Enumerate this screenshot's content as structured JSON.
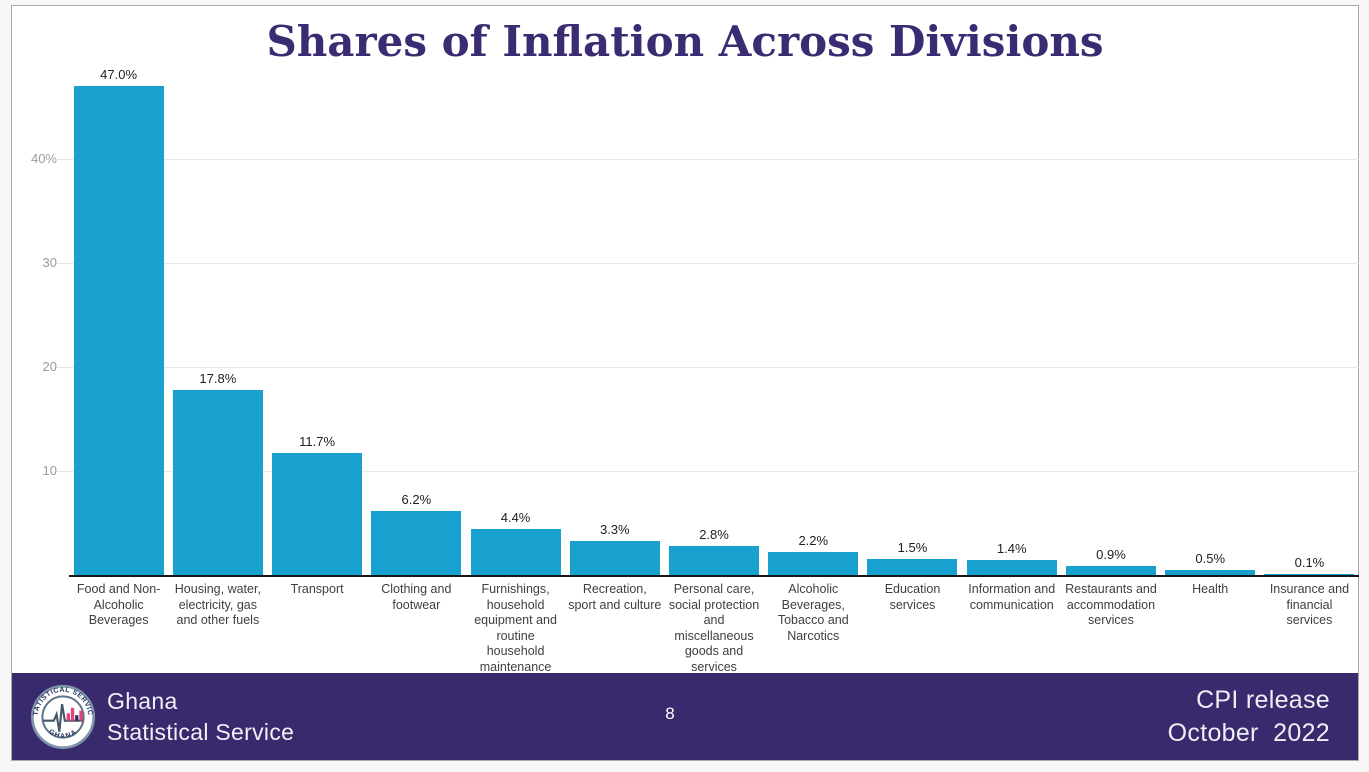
{
  "chart": {
    "title": "Shares of Inflation Across Divisions"
  },
  "chart_data": {
    "type": "bar",
    "title": "Shares of Inflation Across Divisions",
    "categories": [
      "Food and Non-Alcoholic Beverages",
      "Housing, water, electricity, gas and other fuels",
      "Transport",
      "Clothing and footwear",
      "Furnishings, household equipment and routine household maintenance",
      "Recreation, sport and culture",
      "Personal care, social protection and miscellaneous goods and services",
      "Alcoholic Beverages, Tobacco and Narcotics",
      "Education services",
      "Information and communication",
      "Restaurants and accommodation services",
      "Health",
      "Insurance and financial services"
    ],
    "values": [
      47.0,
      17.8,
      11.7,
      6.2,
      4.4,
      3.3,
      2.8,
      2.2,
      1.5,
      1.4,
      0.9,
      0.5,
      0.1
    ],
    "value_labels": [
      "47.0%",
      "17.8%",
      "11.7%",
      "6.2%",
      "4.4%",
      "3.3%",
      "2.8%",
      "2.2%",
      "1.5%",
      "1.4%",
      "0.9%",
      "0.5%",
      "0.1%"
    ],
    "yticks": [
      {
        "value": 10,
        "label": "10"
      },
      {
        "value": 20,
        "label": "20"
      },
      {
        "value": 30,
        "label": "30"
      },
      {
        "value": 40,
        "label": "40%"
      }
    ],
    "ylim": [
      0,
      50
    ],
    "xlabel": "",
    "ylabel": "",
    "grid": true,
    "legend": "none",
    "bar_color": "#18A0CF"
  },
  "footer": {
    "org_line1": "Ghana",
    "org_line2": "Statistical Service",
    "page_number": "8",
    "release_line1": "CPI release",
    "release_line2": "October  2022",
    "logo": {
      "top_text": "STATISTICAL SERVICE",
      "bottom_text": "GHANA"
    }
  },
  "colors": {
    "bar": "#18A0CF",
    "title_text": "#3A2B72",
    "footer_bg": "#382A6C",
    "gridline": "#E9E9E9",
    "axis_line": "#161616",
    "ytick_label": "#9B9BA0",
    "value_label": "#212121",
    "category_label": "#3F3F3F",
    "logo_pink": "#E8417A",
    "logo_navy": "#2A3560",
    "logo_ring": "#7D93A8"
  }
}
